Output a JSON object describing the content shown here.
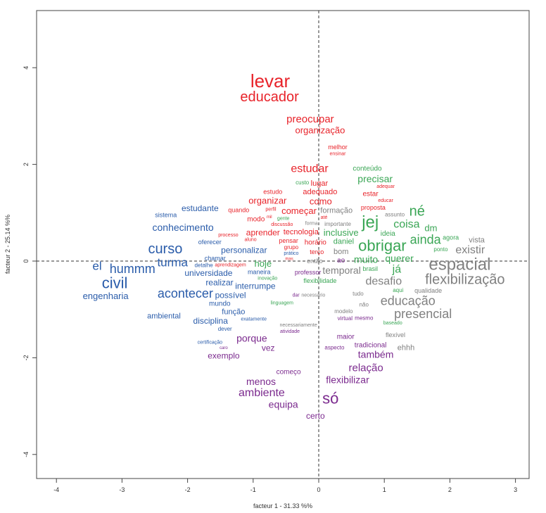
{
  "chart_data": {
    "type": "scatter",
    "title": "",
    "xlabel": "facteur  1  - 31.33 %%",
    "ylabel": "facteur  2  - 25.14 %%",
    "xlim": [
      -4.3,
      3.2
    ],
    "ylim": [
      -4.5,
      5.2
    ],
    "xticks": [
      -4,
      -3,
      -2,
      -1,
      0,
      1,
      2,
      3
    ],
    "yticks": [
      -4,
      -2,
      0,
      2,
      4
    ],
    "reference_lines": {
      "x": 0,
      "y": 0
    },
    "grid": false,
    "clusters": {
      "red": "#e8232a",
      "green": "#3aa655",
      "gray": "#808080",
      "purple": "#7b2a8e",
      "blue": "#2a5caa"
    },
    "point_fields": [
      "word",
      "x",
      "y",
      "cluster",
      "relative_size"
    ],
    "points": [
      [
        "levar",
        -0.74,
        3.71,
        "red",
        2.6
      ],
      [
        "educador",
        -0.75,
        3.41,
        "red",
        2.0
      ],
      [
        "preocupar",
        -0.13,
        2.93,
        "red",
        1.5
      ],
      [
        "organização",
        0.02,
        2.71,
        "red",
        1.3
      ],
      [
        "melhor",
        0.29,
        2.34,
        "red",
        0.9
      ],
      [
        "ensinar",
        0.29,
        2.23,
        "red",
        0.7
      ],
      [
        "estudar",
        -0.14,
        1.91,
        "red",
        1.6
      ],
      [
        "lugar",
        0.01,
        1.53,
        "red",
        1.1
      ],
      [
        "estudo",
        -0.7,
        1.43,
        "red",
        0.9
      ],
      [
        "adequado",
        0.02,
        1.37,
        "red",
        1.1
      ],
      [
        "organizar",
        -0.78,
        1.21,
        "red",
        1.3
      ],
      [
        "como",
        0.03,
        1.21,
        "red",
        1.3
      ],
      [
        "quando",
        -1.22,
        1.08,
        "red",
        0.9
      ],
      [
        "perfil",
        -0.73,
        1.06,
        "red",
        0.7
      ],
      [
        "começar",
        -0.3,
        1.08,
        "red",
        1.3
      ],
      [
        "modo",
        -0.95,
        0.86,
        "red",
        1.0
      ],
      [
        "mil",
        -0.76,
        0.9,
        "red",
        0.6
      ],
      [
        "aprender",
        -0.85,
        0.64,
        "red",
        1.2
      ],
      [
        "discussão",
        -0.56,
        0.74,
        "red",
        0.7
      ],
      [
        "tecnologia",
        -0.27,
        0.58,
        "red",
        1.1
      ],
      [
        "processo",
        -1.38,
        0.49,
        "red",
        0.7
      ],
      [
        "aluno",
        -1.04,
        0.48,
        "red",
        0.7
      ],
      [
        "pensar",
        -0.46,
        0.44,
        "red",
        0.9
      ],
      [
        "horário",
        -0.05,
        0.38,
        "red",
        1.0
      ],
      [
        "grupo",
        -0.42,
        0.31,
        "red",
        0.8
      ],
      [
        "terço",
        -0.03,
        0.19,
        "red",
        0.9
      ],
      [
        "aprendizagem",
        -1.36,
        -0.06,
        "red",
        0.7
      ],
      [
        "mas",
        -0.45,
        0.07,
        "red",
        0.6
      ],
      [
        "até",
        0.08,
        0.84,
        "red",
        0.7
      ],
      [
        "estar",
        0.79,
        1.38,
        "red",
        1.0
      ],
      [
        "adequar",
        1.02,
        1.53,
        "red",
        0.7
      ],
      [
        "educar",
        1.02,
        1.25,
        "red",
        0.7
      ],
      [
        "proposta",
        0.83,
        1.11,
        "red",
        0.9
      ],
      [
        "custo",
        -0.25,
        1.62,
        "green",
        0.8
      ],
      [
        "gente",
        -0.54,
        0.86,
        "green",
        0.7
      ],
      [
        "conteúdo",
        0.74,
        1.91,
        "green",
        1.0
      ],
      [
        "precisar",
        0.86,
        1.7,
        "green",
        1.4
      ],
      [
        "né",
        1.5,
        0.99,
        "green",
        2.0
      ],
      [
        "jej",
        0.79,
        0.79,
        "green",
        2.4
      ],
      [
        "coisa",
        1.34,
        0.74,
        "green",
        1.6
      ],
      [
        "dm",
        1.71,
        0.66,
        "green",
        1.3
      ],
      [
        "inclusive",
        0.34,
        0.64,
        "green",
        1.3
      ],
      [
        "ideia",
        1.05,
        0.51,
        "green",
        1.0
      ],
      [
        "daniel",
        0.38,
        0.44,
        "green",
        1.1
      ],
      [
        "ainda",
        1.63,
        0.42,
        "green",
        1.8
      ],
      [
        "agora",
        2.01,
        0.49,
        "green",
        0.9
      ],
      [
        "obrigar",
        0.97,
        0.33,
        "green",
        2.2
      ],
      [
        "ponto",
        1.86,
        0.28,
        "green",
        0.8
      ],
      [
        "muito",
        0.72,
        0.04,
        "green",
        1.4
      ],
      [
        "querer",
        1.23,
        0.1,
        "green",
        1.4
      ],
      [
        "hoje",
        -0.85,
        -0.09,
        "green",
        1.3
      ],
      [
        "brasil",
        0.78,
        -0.16,
        "green",
        0.9
      ],
      [
        "já",
        1.19,
        -0.22,
        "green",
        1.6
      ],
      [
        "flexibilidade",
        0.02,
        -0.41,
        "green",
        0.9
      ],
      [
        "inovação",
        -0.78,
        -0.49,
        "green",
        0.7
      ],
      [
        "aqui",
        1.21,
        -0.58,
        "green",
        0.8
      ],
      [
        "linguagem",
        -0.56,
        -0.87,
        "green",
        0.7
      ],
      [
        "baseado",
        1.13,
        -1.22,
        "green",
        0.7
      ],
      [
        "formação",
        0.27,
        0.96,
        "gray",
        1.1
      ],
      [
        "assunto",
        1.16,
        0.96,
        "gray",
        0.8
      ],
      [
        "forma",
        -0.11,
        0.77,
        "gray",
        0.7
      ],
      [
        "importante",
        0.29,
        0.8,
        "gray",
        0.8
      ],
      [
        "bom",
        0.34,
        0.19,
        "gray",
        1.1
      ],
      [
        "então",
        -0.06,
        -0.01,
        "gray",
        0.9
      ],
      [
        "temporal",
        0.32,
        -0.17,
        "gray",
        1.4
      ],
      [
        "desafio",
        0.99,
        -0.44,
        "gray",
        1.6
      ],
      [
        "espacial",
        2.15,
        -0.1,
        "gray",
        2.4
      ],
      [
        "flexibilização",
        2.23,
        -0.36,
        "gray",
        2.0
      ],
      [
        "vista",
        2.41,
        0.35,
        "gray",
        1.1
      ],
      [
        "existir",
        2.31,
        0.16,
        "gray",
        1.6
      ],
      [
        "qualidade",
        1.67,
        -0.58,
        "gray",
        0.9
      ],
      [
        "tudo",
        0.6,
        -0.68,
        "gray",
        0.8
      ],
      [
        "necessário",
        -0.09,
        -0.71,
        "gray",
        0.7
      ],
      [
        "educação",
        1.36,
        -0.76,
        "gray",
        1.8
      ],
      [
        "não",
        0.69,
        -0.9,
        "gray",
        0.8
      ],
      [
        "presencial",
        1.59,
        -1.02,
        "gray",
        1.8
      ],
      [
        "modelo",
        0.38,
        -1.05,
        "gray",
        0.8
      ],
      [
        "necessariamente",
        -0.31,
        -1.34,
        "gray",
        0.7
      ],
      [
        "flexível",
        1.17,
        -1.53,
        "gray",
        0.9
      ],
      [
        "ehhh",
        1.33,
        -1.8,
        "gray",
        1.1
      ],
      [
        "ao",
        0.34,
        0.01,
        "purple",
        1.0
      ],
      [
        "professor",
        -0.13,
        -0.23,
        "purple",
        0.9
      ],
      [
        "dar",
        -0.34,
        -0.71,
        "purple",
        0.7
      ],
      [
        "virtual",
        0.4,
        -1.18,
        "purple",
        0.8
      ],
      [
        "mesmo",
        0.69,
        -1.18,
        "purple",
        0.8
      ],
      [
        "atividade",
        -0.44,
        -1.46,
        "purple",
        0.7
      ],
      [
        "maior",
        0.41,
        -1.6,
        "purple",
        1.0
      ],
      [
        "porque",
        -1.02,
        -1.6,
        "purple",
        1.4
      ],
      [
        "vez",
        -0.77,
        -1.79,
        "purple",
        1.2
      ],
      [
        "aspecto",
        0.24,
        -1.79,
        "purple",
        0.8
      ],
      [
        "tradicional",
        0.79,
        -1.73,
        "purple",
        1.0
      ],
      [
        "também",
        0.87,
        -1.92,
        "purple",
        1.4
      ],
      [
        "exemplo",
        -1.45,
        -1.95,
        "purple",
        1.2
      ],
      [
        "relação",
        0.72,
        -2.21,
        "purple",
        1.5
      ],
      [
        "começo",
        -0.46,
        -2.3,
        "purple",
        1.0
      ],
      [
        "flexibilizar",
        0.44,
        -2.45,
        "purple",
        1.4
      ],
      [
        "menos",
        -0.88,
        -2.49,
        "purple",
        1.4
      ],
      [
        "ambiente",
        -0.87,
        -2.74,
        "purple",
        1.6
      ],
      [
        "só",
        0.18,
        -2.84,
        "purple",
        2.2
      ],
      [
        "equipa",
        -0.54,
        -2.95,
        "purple",
        1.4
      ],
      [
        "certo",
        -0.05,
        -3.2,
        "purple",
        1.2
      ],
      [
        "caro",
        -1.45,
        -1.8,
        "purple",
        0.6
      ],
      [
        "sistema",
        -2.33,
        0.95,
        "blue",
        0.9
      ],
      [
        "estudante",
        -1.81,
        1.09,
        "blue",
        1.2
      ],
      [
        "conhecimento",
        -2.07,
        0.7,
        "blue",
        1.4
      ],
      [
        "curso",
        -2.34,
        0.2,
        "blue",
        2.0
      ],
      [
        "oferecer",
        -1.66,
        0.31,
        "blue",
        0.9
      ],
      [
        "personalizar",
        -1.14,
        0.2,
        "blue",
        1.2
      ],
      [
        "chamar",
        -1.58,
        0.06,
        "blue",
        0.9
      ],
      [
        "detalhe",
        -1.74,
        -0.12,
        "blue",
        0.8
      ],
      [
        "el",
        -3.38,
        -0.1,
        "blue",
        1.7
      ],
      [
        "hummm",
        -2.82,
        -0.2,
        "blue",
        1.8
      ],
      [
        "turma",
        -2.25,
        -0.19,
        "blue",
        1.7
      ],
      [
        "universidade",
        -1.68,
        -0.25,
        "blue",
        1.2
      ],
      [
        "civil",
        -3.11,
        -0.45,
        "blue",
        2.2
      ],
      [
        "engenharia",
        -3.25,
        -0.68,
        "blue",
        1.3
      ],
      [
        "realizar",
        -1.51,
        -0.42,
        "blue",
        1.2
      ],
      [
        "maneira",
        -0.91,
        -0.38,
        "blue",
        0.9
      ],
      [
        "acontecer",
        -2.01,
        -0.61,
        "blue",
        1.8
      ],
      [
        "interrumpe",
        -0.97,
        -0.52,
        "blue",
        1.2
      ],
      [
        "possível",
        -1.37,
        -0.67,
        "blue",
        1.2
      ],
      [
        "mundo",
        -1.51,
        -0.8,
        "blue",
        1.0
      ],
      [
        "função",
        -1.3,
        -0.92,
        "blue",
        1.1
      ],
      [
        "ambiental",
        -2.36,
        -1.14,
        "blue",
        1.1
      ],
      [
        "disciplina",
        -1.65,
        -1.11,
        "blue",
        1.2
      ],
      [
        "exatamente",
        -0.99,
        -1.12,
        "blue",
        0.7
      ],
      [
        "dever",
        -1.43,
        -1.28,
        "blue",
        0.8
      ],
      [
        "certificação",
        -1.66,
        -1.7,
        "blue",
        0.7
      ],
      [
        "prático",
        -0.42,
        0.17,
        "blue",
        0.7
      ]
    ]
  }
}
